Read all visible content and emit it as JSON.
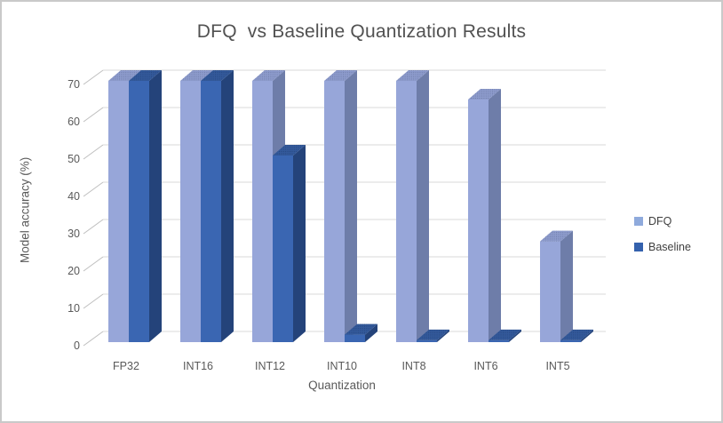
{
  "window": {
    "background": "#ffffff",
    "border_color": "#c9c9c9"
  },
  "chart_data": {
    "type": "bar",
    "style": "3d-clustered-column",
    "title": "DFQ  vs Baseline Quantization Results",
    "xlabel": "Quantization",
    "ylabel": "Model accuracy (%)",
    "categories": [
      "FP32",
      "INT16",
      "INT12",
      "INT10",
      "INT8",
      "INT6",
      "INT5"
    ],
    "series": [
      {
        "name": "DFQ",
        "values": [
          70,
          70,
          70,
          70,
          70,
          65,
          27
        ],
        "color": "#8FAADC",
        "faces": {
          "front": "#97A6D9",
          "side": "#6E7DA9",
          "top": "#8D9BCC",
          "dots": "#5A6890"
        }
      },
      {
        "name": "Baseline",
        "values": [
          70,
          70,
          50,
          2,
          0.5,
          0.5,
          0.5
        ],
        "color": "#3461AD",
        "faces": {
          "front": "#3A66B2",
          "side": "#24437A",
          "top": "#33599A",
          "dots": "#1E3B6E"
        }
      }
    ],
    "ylim": [
      0,
      70
    ],
    "ytick_step": 10,
    "ytick_labels": [
      "0",
      "10",
      "20",
      "30",
      "40",
      "50",
      "60",
      "70"
    ],
    "grid": true,
    "legend_position": "right",
    "colors": {
      "axis_text": "#595959",
      "title_text": "#515151",
      "gridline": "#D9D9D9",
      "tick": "#BFBFBF"
    }
  }
}
